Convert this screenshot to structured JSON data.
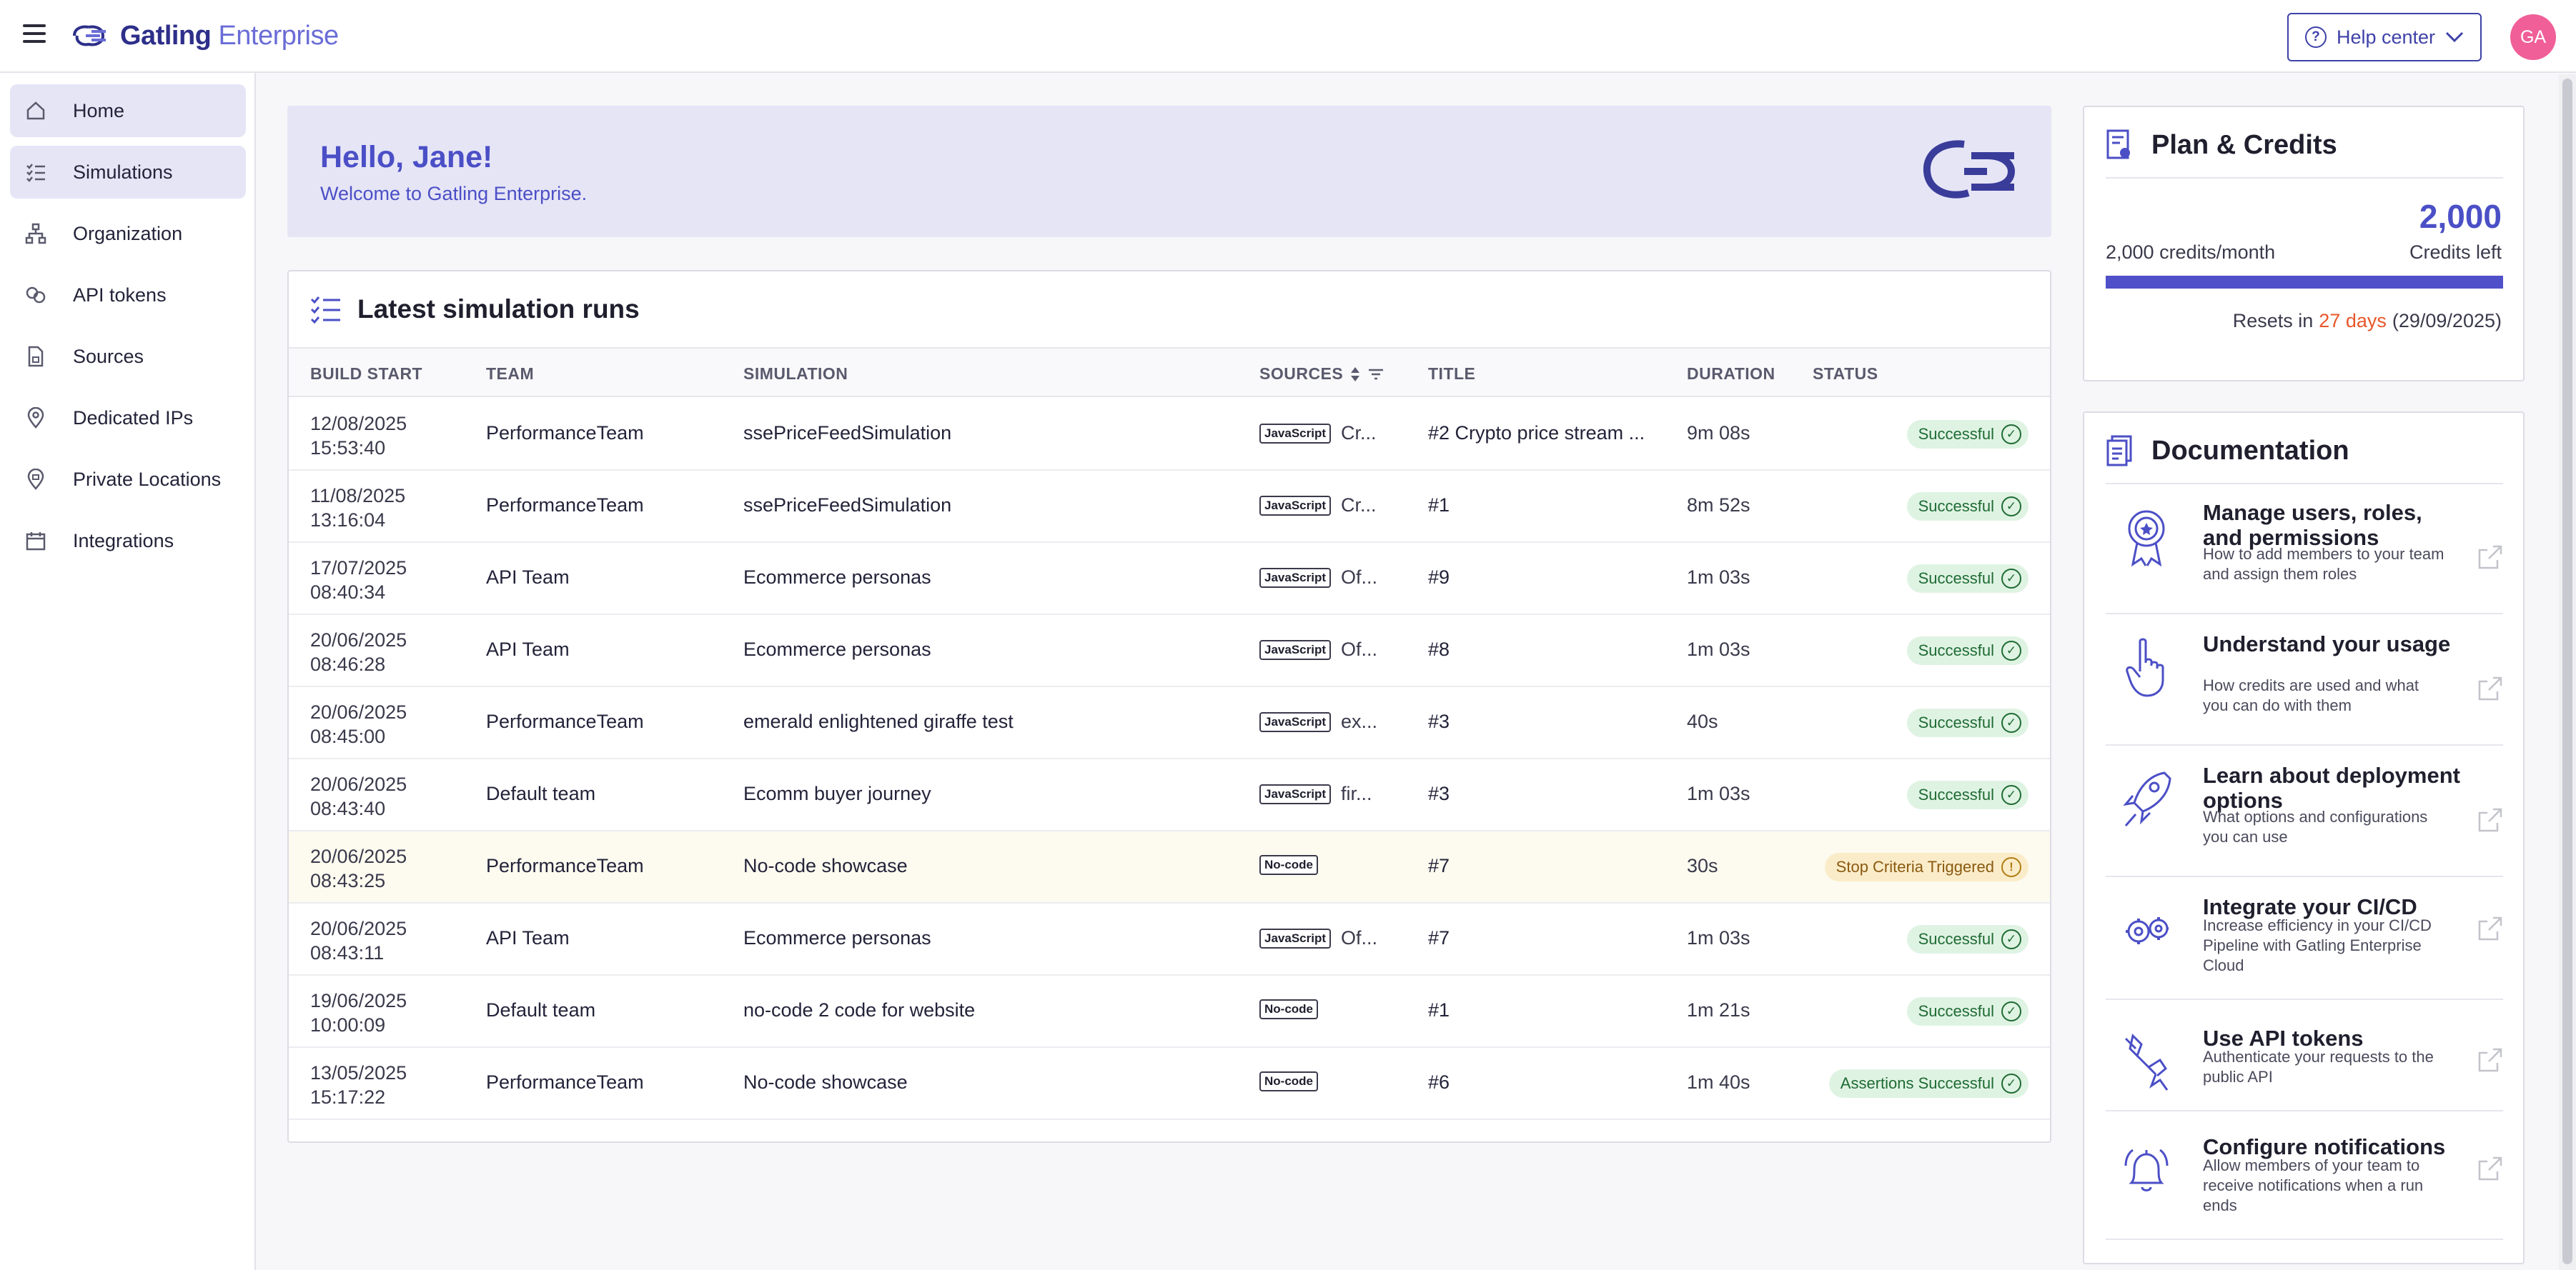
{
  "app": {
    "logo_text_bold": "Gatling",
    "logo_text_light": " Enterprise",
    "help_center_label": "Help center",
    "avatar_initials": "GA"
  },
  "sidebar": {
    "items": [
      {
        "label": "Home",
        "icon": "home-icon",
        "active": true
      },
      {
        "label": "Simulations",
        "icon": "list-check-icon",
        "active": true
      },
      {
        "label": "Organization",
        "icon": "org-chart-icon",
        "active": false
      },
      {
        "label": "API tokens",
        "icon": "link-icon",
        "active": false
      },
      {
        "label": "Sources",
        "icon": "file-lock-icon",
        "active": false
      },
      {
        "label": "Dedicated IPs",
        "icon": "location-pin-icon",
        "active": false
      },
      {
        "label": "Private Locations",
        "icon": "location-pin-lock-icon",
        "active": false
      },
      {
        "label": "Integrations",
        "icon": "calendar-icon",
        "active": false
      }
    ]
  },
  "hello": {
    "title": "Hello, Jane!",
    "subtitle": "Welcome to Gatling Enterprise."
  },
  "runs": {
    "title": "Latest simulation runs",
    "columns": {
      "build_start": "BUILD START",
      "team": "TEAM",
      "simulation": "SIMULATION",
      "sources": "SOURCES",
      "title": "TITLE",
      "duration": "DURATION",
      "status": "STATUS"
    },
    "rows": [
      {
        "date": "12/08/2025",
        "time": "15:53:40",
        "team": "PerformanceTeam",
        "simulation": "ssePriceFeedSimulation",
        "tag": "JavaScript",
        "source": "Cr...",
        "title": "#2 Crypto price stream ...",
        "duration": "9m 08s",
        "status": "Successful",
        "kind": "ok"
      },
      {
        "date": "11/08/2025",
        "time": "13:16:04",
        "team": "PerformanceTeam",
        "simulation": "ssePriceFeedSimulation",
        "tag": "JavaScript",
        "source": "Cr...",
        "title": "#1",
        "duration": "8m 52s",
        "status": "Successful",
        "kind": "ok"
      },
      {
        "date": "17/07/2025",
        "time": "08:40:34",
        "team": "API Team",
        "simulation": "Ecommerce personas",
        "tag": "JavaScript",
        "source": "Of...",
        "title": "#9",
        "duration": "1m 03s",
        "status": "Successful",
        "kind": "ok"
      },
      {
        "date": "20/06/2025",
        "time": "08:46:28",
        "team": "API Team",
        "simulation": "Ecommerce personas",
        "tag": "JavaScript",
        "source": "Of...",
        "title": "#8",
        "duration": "1m 03s",
        "status": "Successful",
        "kind": "ok"
      },
      {
        "date": "20/06/2025",
        "time": "08:45:00",
        "team": "PerformanceTeam",
        "simulation": "emerald enlightened giraffe test",
        "tag": "JavaScript",
        "source": "ex...",
        "title": "#3",
        "duration": "40s",
        "status": "Successful",
        "kind": "ok"
      },
      {
        "date": "20/06/2025",
        "time": "08:43:40",
        "team": "Default team",
        "simulation": "Ecomm buyer journey",
        "tag": "JavaScript",
        "source": "fir...",
        "title": "#3",
        "duration": "1m 03s",
        "status": "Successful",
        "kind": "ok"
      },
      {
        "date": "20/06/2025",
        "time": "08:43:25",
        "team": "PerformanceTeam",
        "simulation": "No-code showcase",
        "tag": "No-code",
        "source": "",
        "title": "#7",
        "duration": "30s",
        "status": "Stop Criteria Triggered",
        "kind": "warn"
      },
      {
        "date": "20/06/2025",
        "time": "08:43:11",
        "team": "API Team",
        "simulation": "Ecommerce personas",
        "tag": "JavaScript",
        "source": "Of...",
        "title": "#7",
        "duration": "1m 03s",
        "status": "Successful",
        "kind": "ok"
      },
      {
        "date": "19/06/2025",
        "time": "10:00:09",
        "team": "Default team",
        "simulation": "no-code 2 code for website",
        "tag": "No-code",
        "source": "",
        "title": "#1",
        "duration": "1m 21s",
        "status": "Successful",
        "kind": "ok"
      },
      {
        "date": "13/05/2025",
        "time": "15:17:22",
        "team": "PerformanceTeam",
        "simulation": "No-code showcase",
        "tag": "No-code",
        "source": "",
        "title": "#6",
        "duration": "1m 40s",
        "status": "Assertions Successful",
        "kind": "ok"
      }
    ]
  },
  "plan": {
    "title": "Plan & Credits",
    "credits_left_value": "2,000",
    "credits_left_label": "Credits left",
    "per_month": "2,000 credits/month",
    "credits_fraction_left": 1.0,
    "resets_prefix": "Resets in",
    "resets_days": "27 days",
    "resets_date": "(29/09/2025)"
  },
  "docs": {
    "title": "Documentation",
    "items": [
      {
        "title": "Manage users, roles, and permissions",
        "desc": "How to add members to your team and assign them roles",
        "icon": "badge-award-icon"
      },
      {
        "title": "Understand your usage",
        "desc": "How credits are used and what you can do with them",
        "icon": "pointing-hand-icon"
      },
      {
        "title": "Learn about deployment options",
        "desc": "What options and configurations you can use",
        "icon": "rocket-icon"
      },
      {
        "title": "Integrate your CI/CD",
        "desc": "Increase efficiency in your CI/CD Pipeline with Gatling Enterprise Cloud",
        "icon": "gears-icon"
      },
      {
        "title": "Use API tokens",
        "desc": "Authenticate your requests to the public API",
        "icon": "plug-icon"
      },
      {
        "title": "Configure notifications",
        "desc": "Allow members of your team to receive notifications when a run ends",
        "icon": "bell-icon"
      }
    ]
  },
  "colors": {
    "accent": "#4b4fc6",
    "success_bg": "#dff3e3",
    "warn_bg": "#fbecc9",
    "reset_days": "#e8572a"
  }
}
